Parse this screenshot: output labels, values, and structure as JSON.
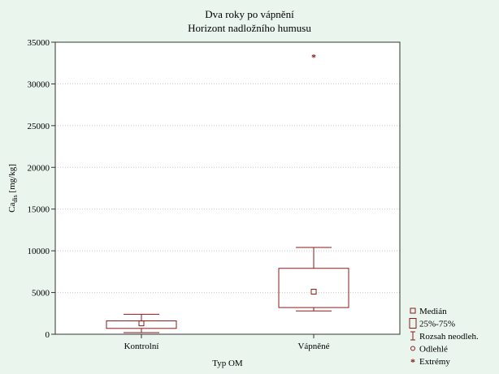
{
  "chart_data": {
    "type": "box",
    "title": "Dva roky po vápnění",
    "subtitle": "Horizont nadložního humusu",
    "xlabel": "Typ OM",
    "ylabel": {
      "main": "Ca",
      "sub": "dis",
      "units": " [mg/kg]"
    },
    "ylim": [
      0,
      35000
    ],
    "yticks": [
      0,
      5000,
      10000,
      15000,
      20000,
      25000,
      30000,
      35000
    ],
    "ytick_labels": [
      "0",
      "5000",
      "10000",
      "15000",
      "20000",
      "25000",
      "30000",
      "35000"
    ],
    "grid": true,
    "categories": [
      "Kontrolní",
      "Vápněné"
    ],
    "boxes": [
      {
        "category": "Kontrolní",
        "whisker_low": 200,
        "q1": 700,
        "median": 1300,
        "q3": 1600,
        "whisker_high": 2400,
        "extremes": []
      },
      {
        "category": "Vápněné",
        "whisker_low": 2800,
        "q1": 3200,
        "median": 5100,
        "q3": 7900,
        "whisker_high": 10400,
        "extremes": [
          33200
        ]
      }
    ],
    "legend": {
      "position": "bottom-right",
      "items": [
        {
          "symbol": "square-small",
          "label": "Medián"
        },
        {
          "symbol": "box",
          "label": "25%-75%"
        },
        {
          "symbol": "whisker",
          "label": "Rozsah neodleh."
        },
        {
          "symbol": "circle",
          "label": "Odlehlé"
        },
        {
          "symbol": "star",
          "label": "Extrémy"
        }
      ]
    },
    "colors": {
      "series": "#8b1a1a",
      "grid": "#c8c8c8",
      "frame": "#333333",
      "background": "#eaf5ee",
      "plot_background": "#ffffff"
    }
  }
}
